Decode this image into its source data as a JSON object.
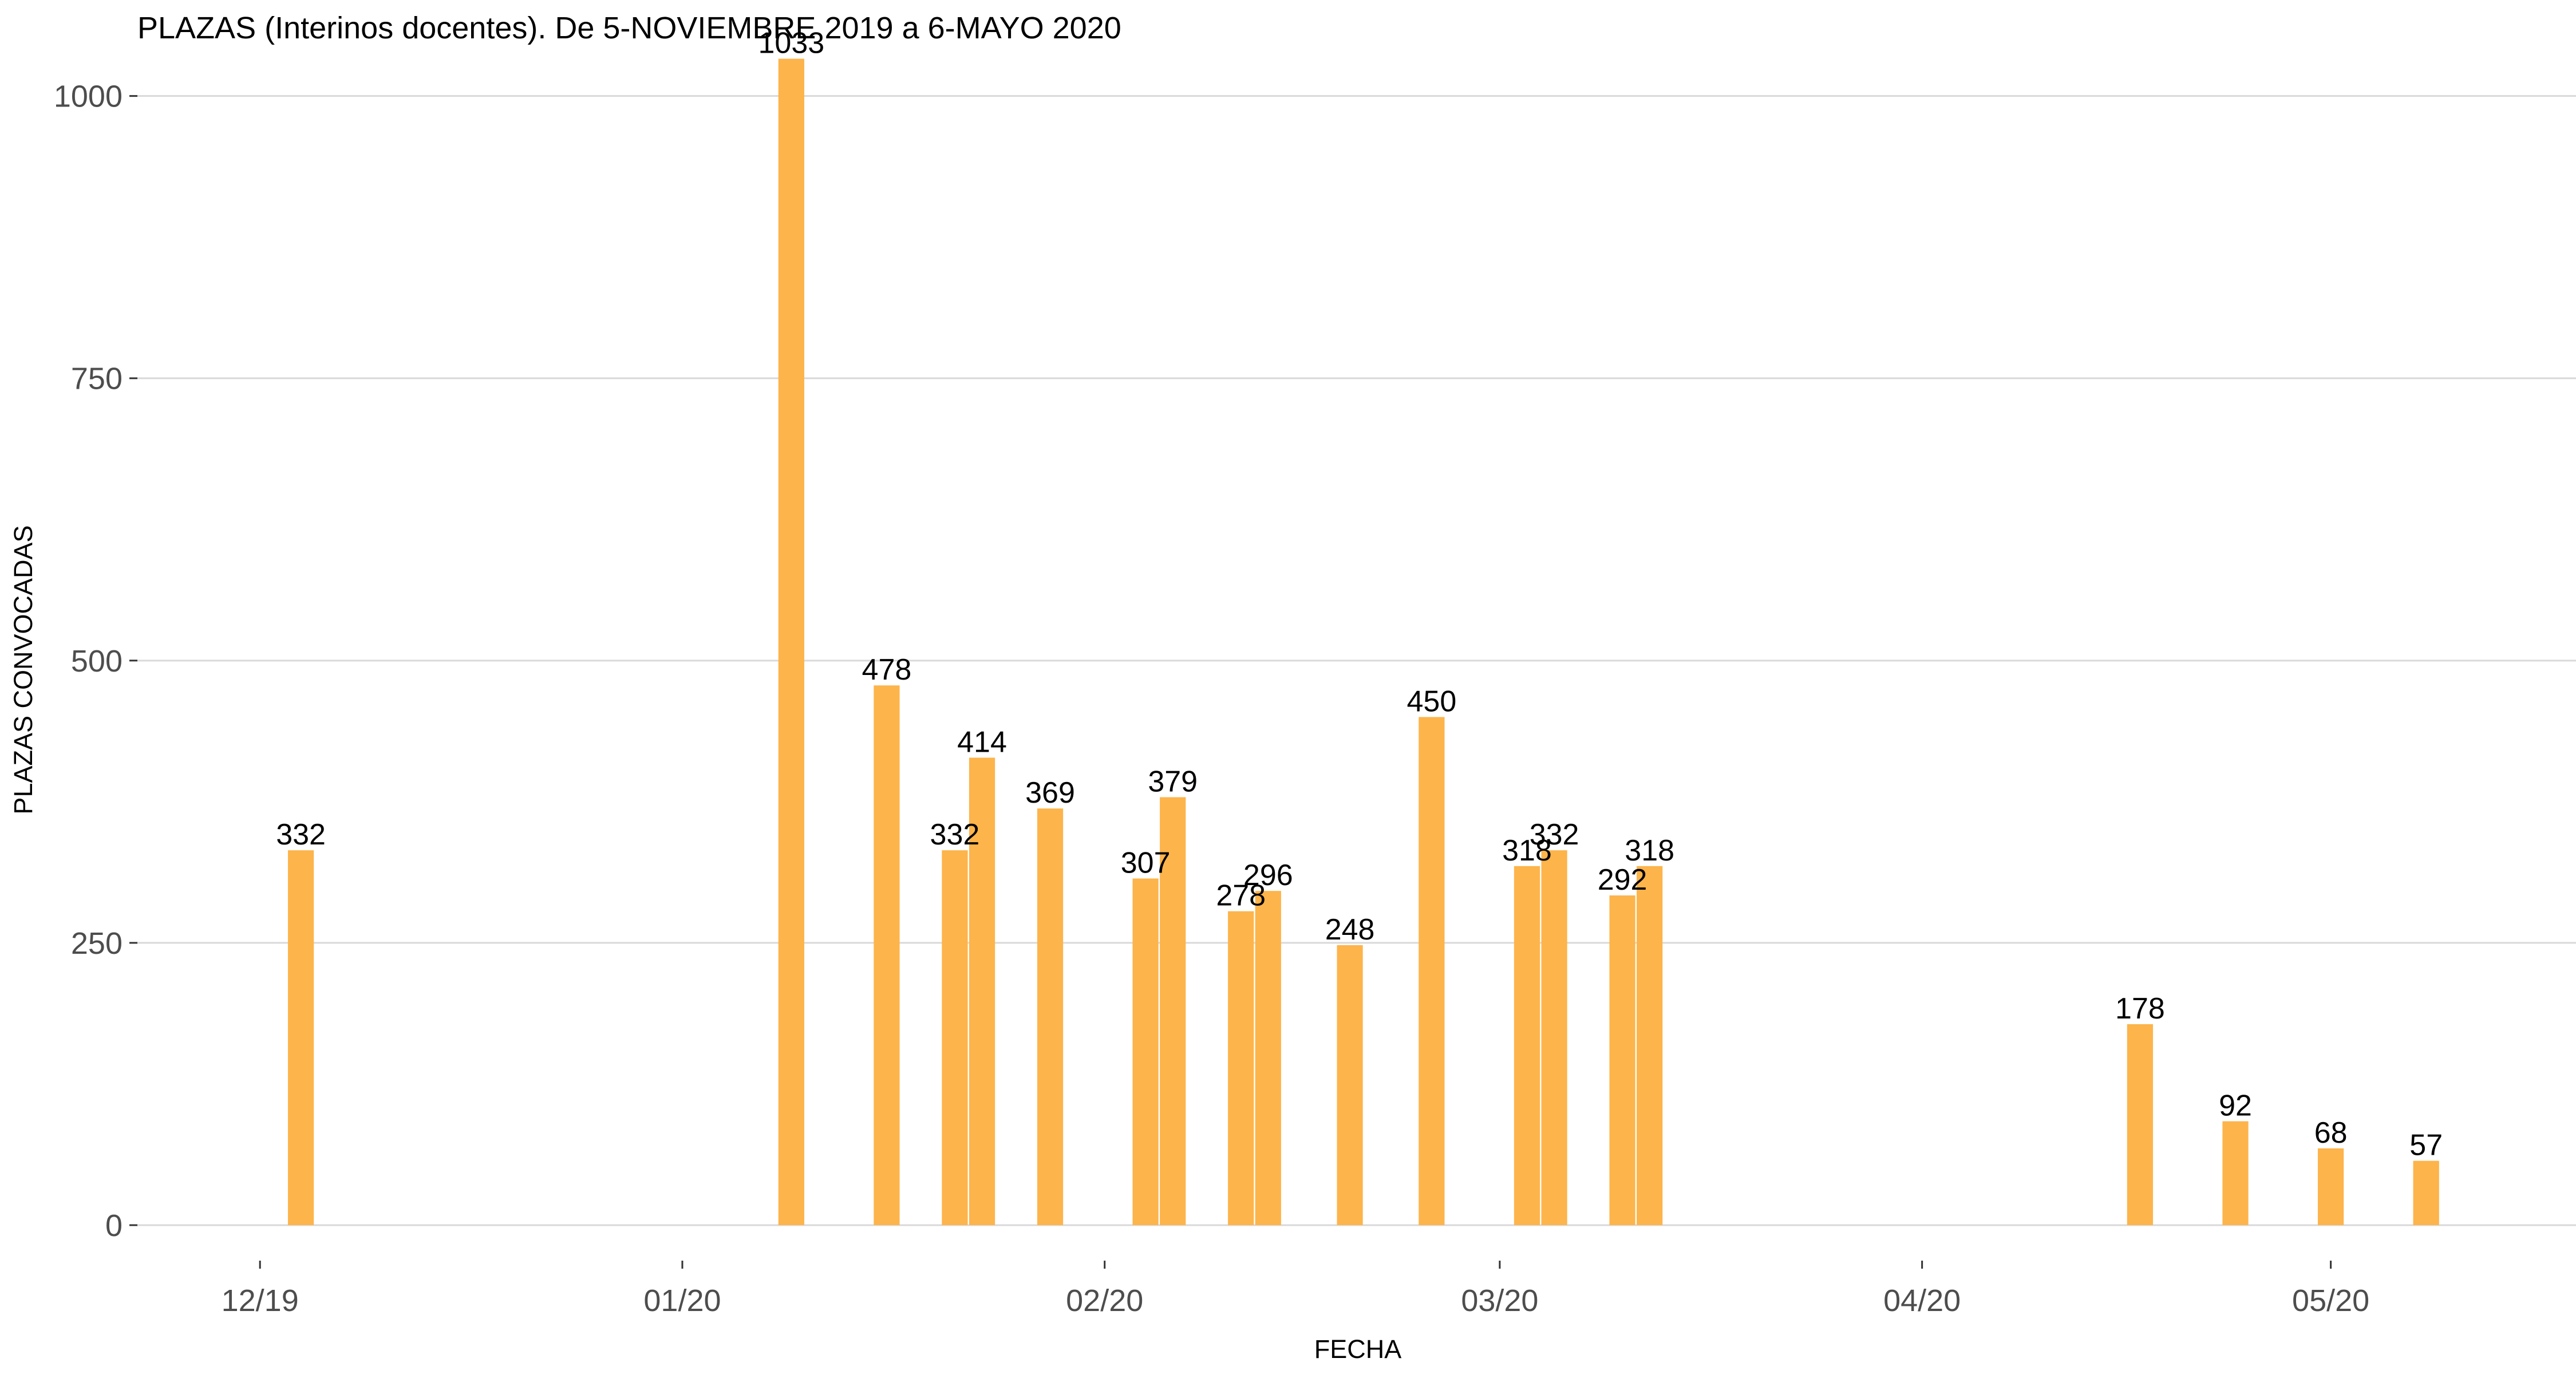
{
  "chart_data": {
    "type": "bar",
    "title": "PLAZAS (Interinos docentes).  De 5-NOVIEMBRE 2019 a 6-MAYO 2020",
    "xlabel": "FECHA",
    "ylabel": "PLAZAS CONVOCADAS",
    "ylim": [
      0,
      1085
    ],
    "yticks": [
      0,
      250,
      500,
      750,
      1000
    ],
    "xlim": [
      "2019-11-22",
      "2020-05-19"
    ],
    "xticks": [
      {
        "date": "2019-12-01",
        "label": "12/19"
      },
      {
        "date": "2020-01-01",
        "label": "01/20"
      },
      {
        "date": "2020-02-01",
        "label": "02/20"
      },
      {
        "date": "2020-03-01",
        "label": "03/20"
      },
      {
        "date": "2020-04-01",
        "label": "04/20"
      },
      {
        "date": "2020-05-01",
        "label": "05/20"
      }
    ],
    "grid": "horizontal",
    "bar_color": "#FDB44B",
    "bars": [
      {
        "date": "2019-12-04",
        "value": 332
      },
      {
        "date": "2020-01-09",
        "value": 1033
      },
      {
        "date": "2020-01-16",
        "value": 478
      },
      {
        "date": "2020-01-21",
        "value": 332
      },
      {
        "date": "2020-01-23",
        "value": 414
      },
      {
        "date": "2020-01-28",
        "value": 369
      },
      {
        "date": "2020-02-04",
        "value": 307
      },
      {
        "date": "2020-02-06",
        "value": 379
      },
      {
        "date": "2020-02-11",
        "value": 278
      },
      {
        "date": "2020-02-13",
        "value": 296
      },
      {
        "date": "2020-02-19",
        "value": 248
      },
      {
        "date": "2020-02-25",
        "value": 450
      },
      {
        "date": "2020-03-03",
        "value": 318
      },
      {
        "date": "2020-03-05",
        "value": 332
      },
      {
        "date": "2020-03-10",
        "value": 292
      },
      {
        "date": "2020-03-12",
        "value": 318
      },
      {
        "date": "2020-04-17",
        "value": 178
      },
      {
        "date": "2020-04-24",
        "value": 92
      },
      {
        "date": "2020-05-01",
        "value": 68
      },
      {
        "date": "2020-05-08",
        "value": 57
      }
    ]
  }
}
